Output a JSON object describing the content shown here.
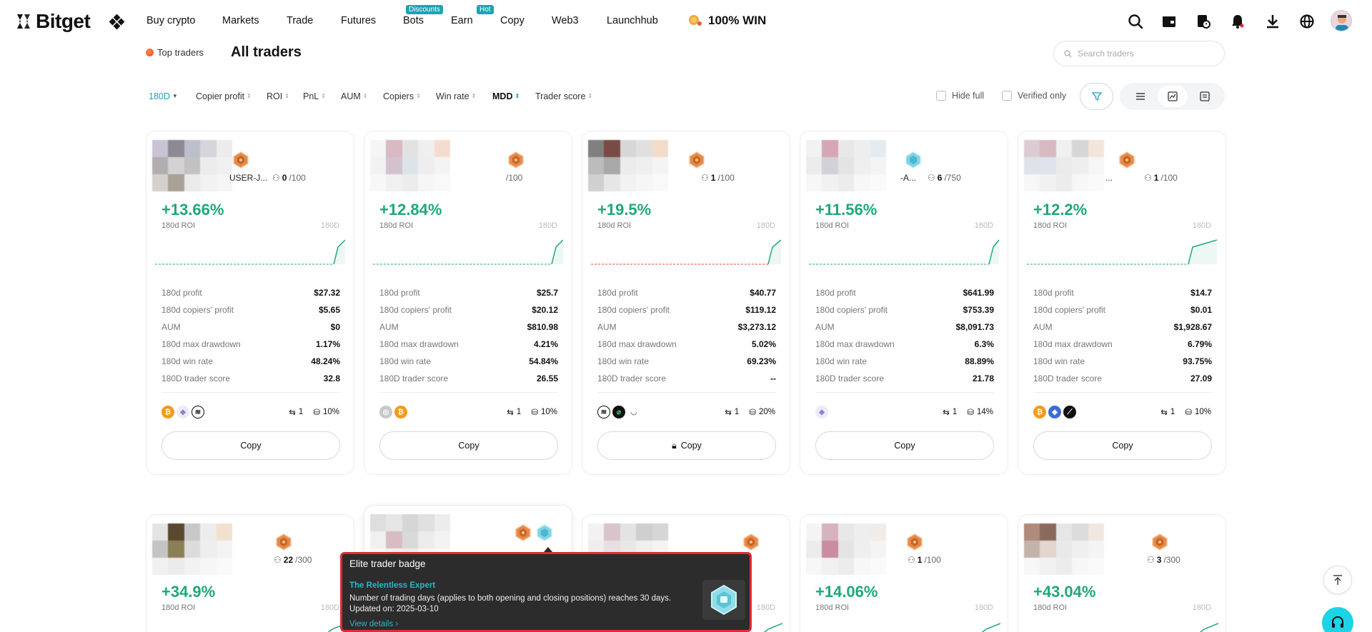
{
  "brand": {
    "name": "Bitget"
  },
  "nav": {
    "items": [
      {
        "label": "Buy crypto",
        "badge": ""
      },
      {
        "label": "Markets",
        "badge": ""
      },
      {
        "label": "Trade",
        "badge": ""
      },
      {
        "label": "Futures",
        "badge": ""
      },
      {
        "label": "Bots",
        "badge": "Discounts"
      },
      {
        "label": "Earn",
        "badge": "Hot"
      },
      {
        "label": "Copy",
        "badge": ""
      },
      {
        "label": "Web3",
        "badge": ""
      },
      {
        "label": "Launchhub",
        "badge": ""
      }
    ],
    "promo": "100% WIN",
    "icons": [
      "search-icon",
      "wallet-icon",
      "orders-icon",
      "bell-icon",
      "download-icon",
      "globe-icon"
    ]
  },
  "header": {
    "tab_top": "Top traders",
    "tab_all": "All traders",
    "search_placeholder": "Search traders"
  },
  "filters": {
    "period": "180D",
    "sorts": [
      "Copier profit",
      "ROI",
      "PnL",
      "AUM",
      "Copiers",
      "Win rate",
      "MDD",
      "Trader score"
    ],
    "active_sort": "MDD",
    "hide_full": "Hide full",
    "verified_only": "Verified only"
  },
  "cards_row1": [
    {
      "name_fragment": "USER-J...",
      "copiers_current": "0",
      "copiers_max": "/100",
      "roi": "+13.66%",
      "roi_label": "180d ROI",
      "period_tag": "180D",
      "stats": [
        {
          "k": "180d profit",
          "v": "$27.32"
        },
        {
          "k": "180d copiers' profit",
          "v": "$5.65"
        },
        {
          "k": "AUM",
          "v": "$0"
        },
        {
          "k": "180d max drawdown",
          "v": "1.17%"
        },
        {
          "k": "180d win rate",
          "v": "48.24%"
        },
        {
          "k": "180D trader score",
          "v": "32.8"
        }
      ],
      "coins": [
        "btc",
        "eth",
        "sol-dark"
      ],
      "shares": "1",
      "share_pct": "10%",
      "copy_label": "Copy",
      "locked": false,
      "medal": "bronze",
      "spark_color": "#1fa87a"
    },
    {
      "name_fragment": "",
      "copiers_current": "",
      "copiers_max": "/100",
      "roi": "+12.84%",
      "roi_label": "180d ROI",
      "period_tag": "180D",
      "stats": [
        {
          "k": "180d profit",
          "v": "$25.7"
        },
        {
          "k": "180d copiers' profit",
          "v": "$20.12"
        },
        {
          "k": "AUM",
          "v": "$810.98"
        },
        {
          "k": "180d max drawdown",
          "v": "4.21%"
        },
        {
          "k": "180d win rate",
          "v": "54.84%"
        },
        {
          "k": "180D trader score",
          "v": "26.55"
        }
      ],
      "coins": [
        "grey",
        "btc"
      ],
      "shares": "1",
      "share_pct": "10%",
      "copy_label": "Copy",
      "locked": false,
      "medal": "bronze",
      "spark_color": "#1fa87a"
    },
    {
      "name_fragment": "",
      "copiers_current": "1",
      "copiers_max": "/100",
      "roi": "+19.5%",
      "roi_label": "180d ROI",
      "period_tag": "180D",
      "stats": [
        {
          "k": "180d profit",
          "v": "$40.77"
        },
        {
          "k": "180d copiers' profit",
          "v": "$119.12"
        },
        {
          "k": "AUM",
          "v": "$3,273.12"
        },
        {
          "k": "180d max drawdown",
          "v": "5.02%"
        },
        {
          "k": "180d win rate",
          "v": "69.23%"
        },
        {
          "k": "180D trader score",
          "v": "--"
        }
      ],
      "coins": [
        "sol-dark",
        "green-dark",
        "arc"
      ],
      "shares": "1",
      "share_pct": "20%",
      "copy_label": "Copy",
      "locked": true,
      "medal": "bronze",
      "spark_color": "#e04848"
    },
    {
      "name_fragment": "-A...",
      "copiers_current": "6",
      "copiers_max": "/750",
      "roi": "+11.56%",
      "roi_label": "180d ROI",
      "period_tag": "180D",
      "stats": [
        {
          "k": "180d profit",
          "v": "$641.99"
        },
        {
          "k": "180d copiers' profit",
          "v": "$753.39"
        },
        {
          "k": "AUM",
          "v": "$8,091.73"
        },
        {
          "k": "180d max drawdown",
          "v": "6.3%"
        },
        {
          "k": "180d win rate",
          "v": "88.89%"
        },
        {
          "k": "180D trader score",
          "v": "21.78"
        }
      ],
      "coins": [
        "eth"
      ],
      "shares": "1",
      "share_pct": "14%",
      "copy_label": "Copy",
      "locked": false,
      "medal": "diamond",
      "spark_color": "#1fa87a"
    },
    {
      "name_fragment": "...",
      "copiers_current": "1",
      "copiers_max": "/100",
      "roi": "+12.2%",
      "roi_label": "180d ROI",
      "period_tag": "180D",
      "stats": [
        {
          "k": "180d profit",
          "v": "$14.7"
        },
        {
          "k": "180d copiers' profit",
          "v": "$0.01"
        },
        {
          "k": "AUM",
          "v": "$1,928.67"
        },
        {
          "k": "180d max drawdown",
          "v": "6.79%"
        },
        {
          "k": "180d win rate",
          "v": "93.75%"
        },
        {
          "k": "180D trader score",
          "v": "27.09"
        }
      ],
      "coins": [
        "btc",
        "blue",
        "black-slash"
      ],
      "shares": "1",
      "share_pct": "10%",
      "copy_label": "Copy",
      "locked": false,
      "medal": "bronze",
      "spark_color": "#1fa87a"
    }
  ],
  "cards_row2": [
    {
      "copiers_current": "22",
      "copiers_max": "/300",
      "roi": "+34.9%",
      "roi_label": "180d ROI",
      "period_tag": "180D"
    },
    {
      "copiers_current": "",
      "copiers_max": "",
      "roi": "",
      "roi_label": "",
      "period_tag": ""
    },
    {
      "copiers_current": "",
      "copiers_max": "",
      "roi": "",
      "roi_label": "",
      "period_tag": "180D"
    },
    {
      "copiers_current": "1",
      "copiers_max": "/100",
      "roi": "+14.06%",
      "roi_label": "180d ROI",
      "period_tag": "180D"
    },
    {
      "copiers_current": "3",
      "copiers_max": "/300",
      "roi": "+43.04%",
      "roi_label": "180d ROI",
      "period_tag": "180D"
    }
  ],
  "tooltip": {
    "title": "Elite trader badge",
    "badge_name": "The Relentless Expert",
    "description": "Number of trading days (applies to both opening and closing positions) reaches 30 days.",
    "updated_label": "Updated on:",
    "updated_date": "2025-03-10",
    "link": "View details ›"
  },
  "colors": {
    "accent": "#1da2b4",
    "profit": "#1fa87a",
    "loss": "#e04848",
    "highlight_border": "#e12a36"
  }
}
